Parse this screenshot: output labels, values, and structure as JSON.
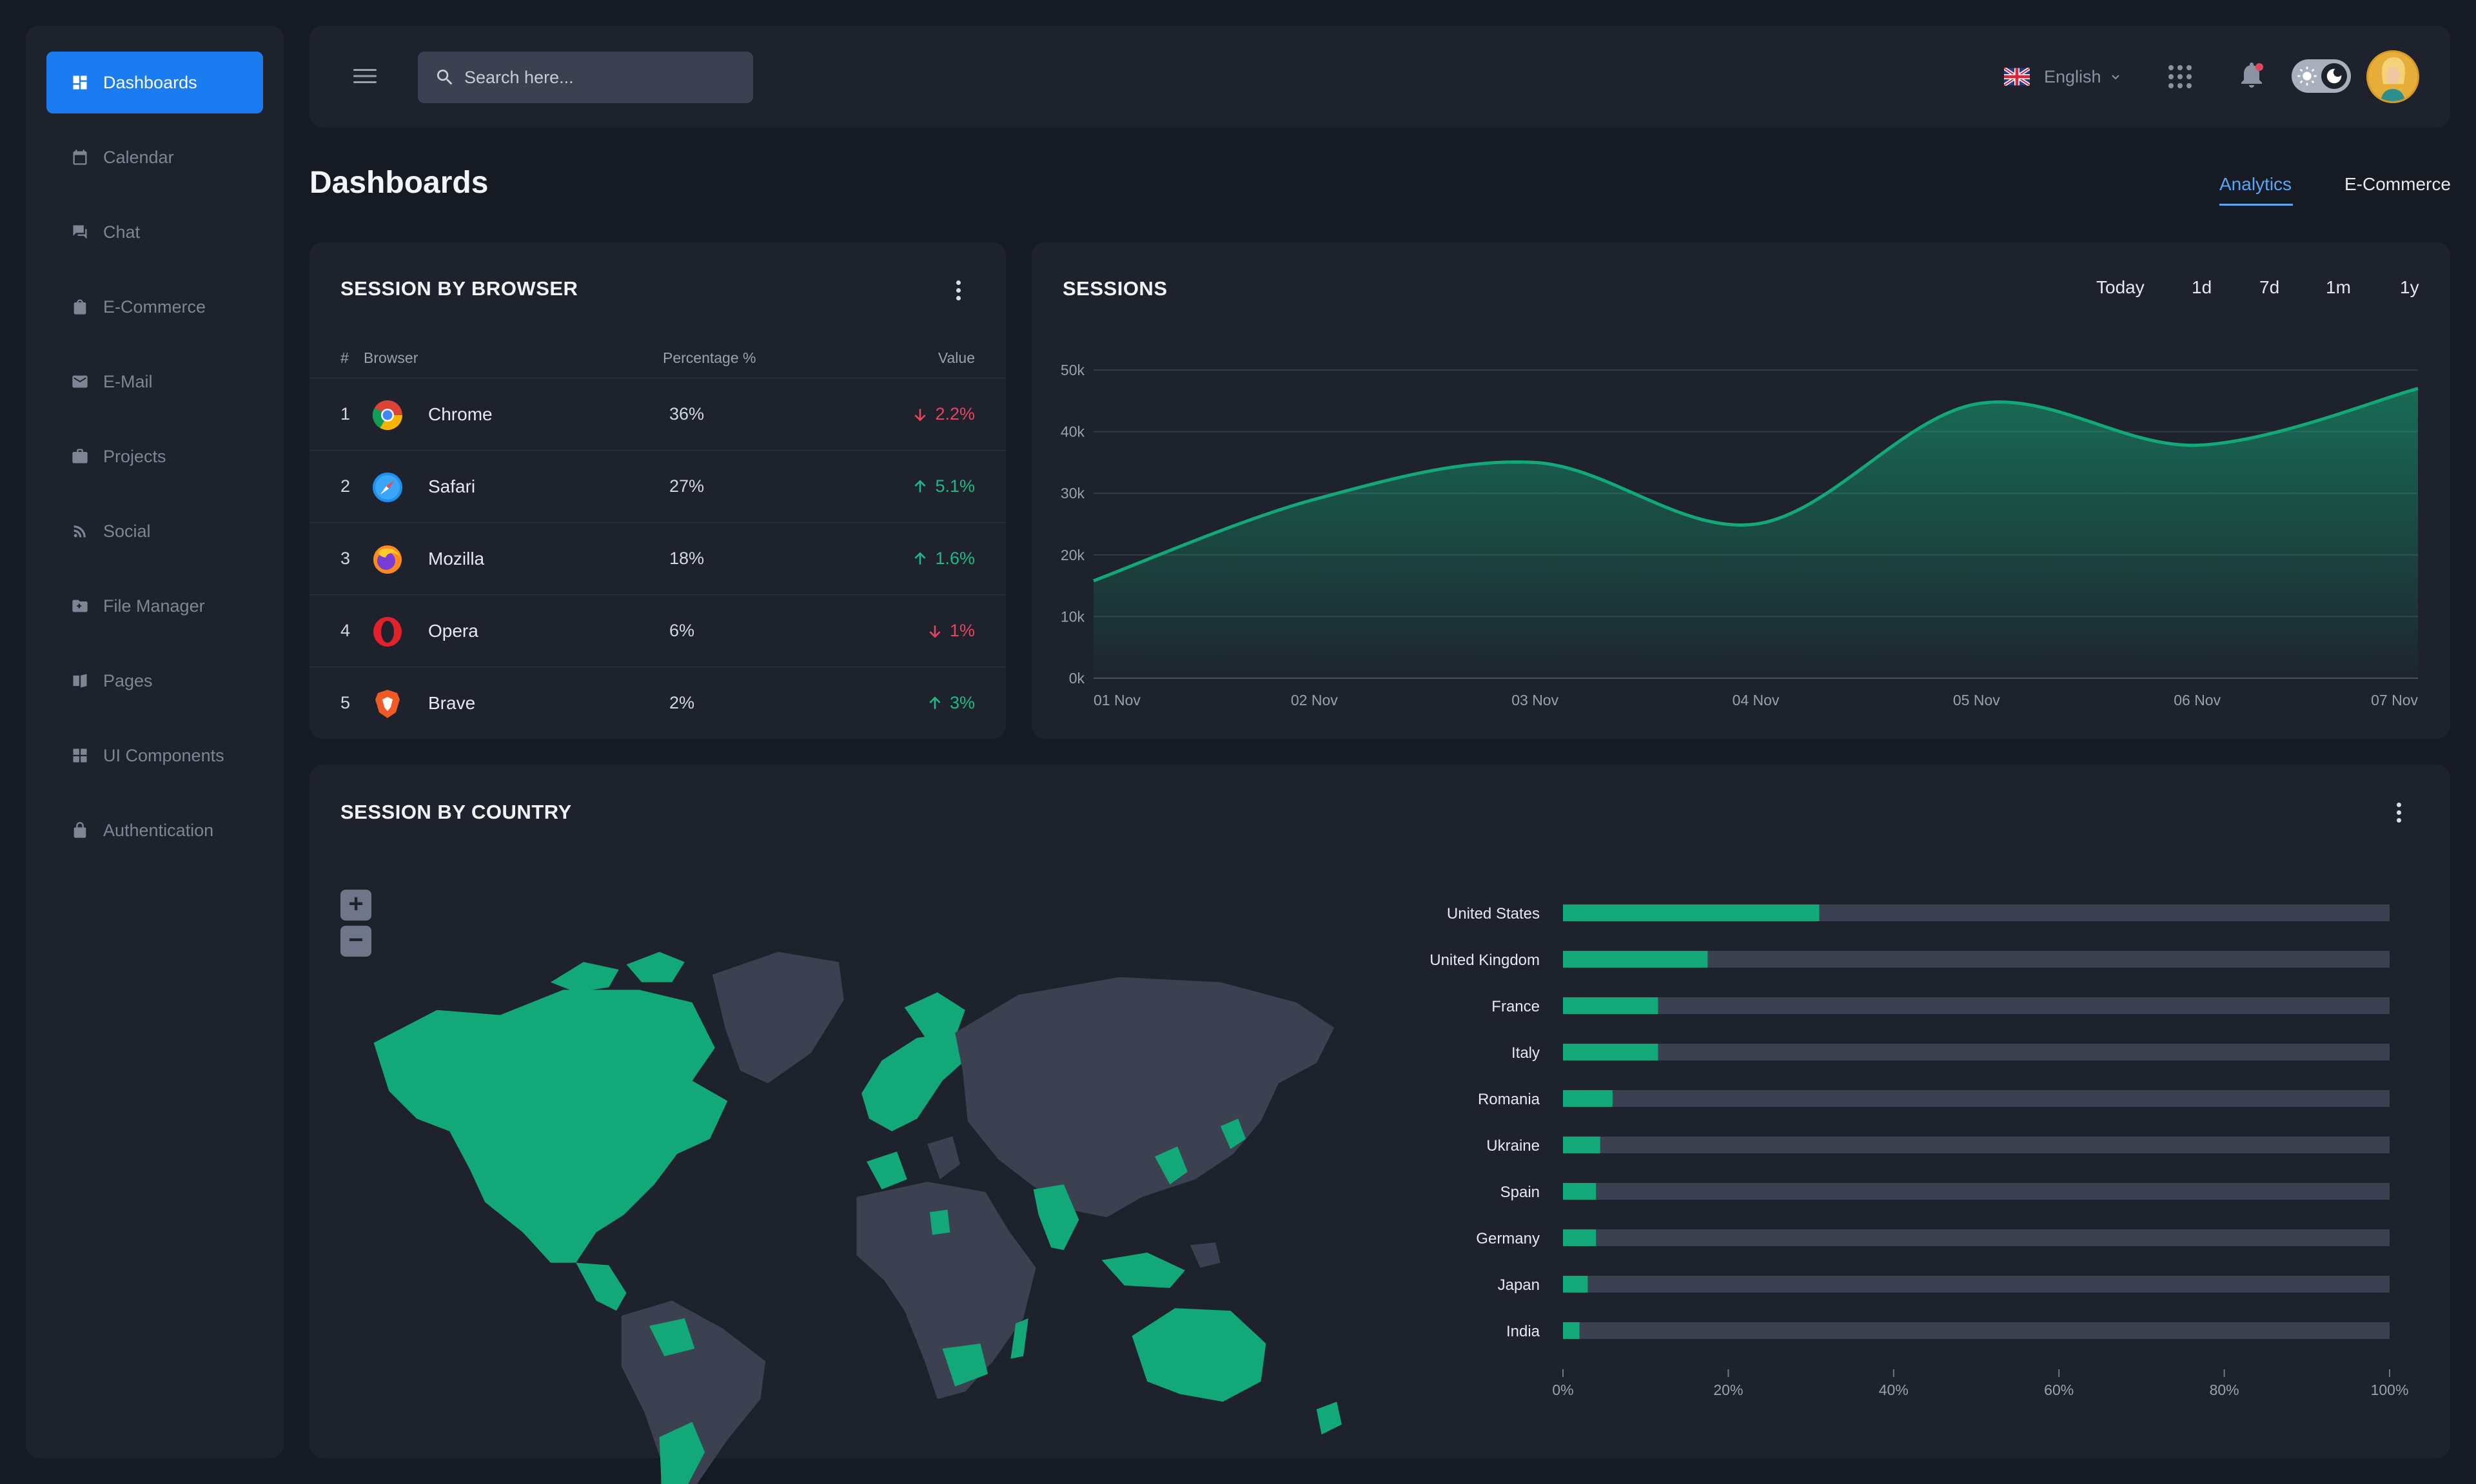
{
  "sidebar": {
    "items": [
      {
        "label": "Dashboards",
        "icon": "dashboard-icon",
        "active": true
      },
      {
        "label": "Calendar",
        "icon": "calendar-icon"
      },
      {
        "label": "Chat",
        "icon": "chat-icon"
      },
      {
        "label": "E-Commerce",
        "icon": "shopping-bag-icon"
      },
      {
        "label": "E-Mail",
        "icon": "mail-icon"
      },
      {
        "label": "Projects",
        "icon": "briefcase-icon"
      },
      {
        "label": "Social",
        "icon": "rss-icon"
      },
      {
        "label": "File Manager",
        "icon": "folder-icon"
      },
      {
        "label": "Pages",
        "icon": "pages-icon"
      },
      {
        "label": "UI Components",
        "icon": "widgets-icon"
      },
      {
        "label": "Authentication",
        "icon": "lock-icon"
      }
    ]
  },
  "header": {
    "search_placeholder": "Search here...",
    "language": "English",
    "notification_dot_color": "#e7445f"
  },
  "page": {
    "title": "Dashboards",
    "tabs": [
      {
        "label": "Analytics",
        "active": true
      },
      {
        "label": "E-Commerce"
      }
    ]
  },
  "browser_card": {
    "title": "SESSION BY BROWSER",
    "columns": {
      "num": "#",
      "browser": "Browser",
      "percentage": "Percentage %",
      "value": "Value"
    },
    "rows": [
      {
        "num": "1",
        "browser": "Chrome",
        "percentage": "36%",
        "value": "2.2%",
        "trend": "down"
      },
      {
        "num": "2",
        "browser": "Safari",
        "percentage": "27%",
        "value": "5.1%",
        "trend": "up"
      },
      {
        "num": "3",
        "browser": "Mozilla",
        "percentage": "18%",
        "value": "1.6%",
        "trend": "up"
      },
      {
        "num": "4",
        "browser": "Opera",
        "percentage": "6%",
        "value": "1%",
        "trend": "down"
      },
      {
        "num": "5",
        "browser": "Brave",
        "percentage": "2%",
        "value": "3%",
        "trend": "up"
      }
    ]
  },
  "sessions_card": {
    "title": "SESSIONS",
    "ranges": [
      {
        "label": "Today",
        "active": true
      },
      {
        "label": "1d"
      },
      {
        "label": "7d"
      },
      {
        "label": "1m"
      },
      {
        "label": "1y"
      }
    ]
  },
  "country_card": {
    "title": "SESSION BY COUNTRY",
    "zoom_in": "+",
    "zoom_out": "−"
  },
  "colors": {
    "accent": "#1a7cf0",
    "green": "#1fb885",
    "red": "#e7445f",
    "bar_track": "#3b4150",
    "map_land": "#3b4150"
  },
  "chart_data": [
    {
      "type": "area",
      "x": [
        "01 Nov",
        "02 Nov",
        "03 Nov",
        "04 Nov",
        "05 Nov",
        "06 Nov",
        "07 Nov"
      ],
      "series": [
        {
          "values": [
            15800,
            29000,
            35000,
            25000,
            44500,
            37800,
            47000
          ]
        }
      ],
      "yticks": [
        "0k",
        "10k",
        "20k",
        "30k",
        "40k",
        "50k"
      ],
      "ylim": [
        0,
        50000
      ],
      "grid": true
    },
    {
      "type": "bar",
      "orientation": "horizontal",
      "categories": [
        "United States",
        "United Kingdom",
        "France",
        "Italy",
        "Romania",
        "Ukraine",
        "Spain",
        "Germany",
        "Japan",
        "India"
      ],
      "values": [
        31,
        17.5,
        11.5,
        11.5,
        6,
        4.5,
        4,
        4,
        3,
        2
      ],
      "xticks": [
        "0%",
        "20%",
        "40%",
        "60%",
        "80%",
        "100%"
      ],
      "xlim": [
        0,
        100
      ]
    }
  ]
}
